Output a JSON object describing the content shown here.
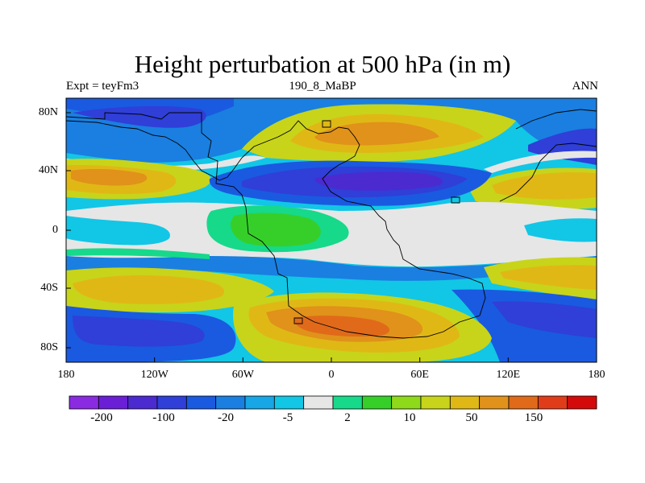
{
  "title": "Height perturbation at 500 hPa (in m)",
  "left_string": "Expt = teyFm3",
  "center_string": "190_8_MaBP",
  "right_string": "ANN",
  "lat_ticks": [
    "80N",
    "40N",
    "0",
    "40S",
    "80S"
  ],
  "lon_ticks": [
    "180",
    "120W",
    "60W",
    "0",
    "60E",
    "120E",
    "180"
  ],
  "colorbar": {
    "colors": [
      "#8a2be2",
      "#6a1fd6",
      "#4b2ad0",
      "#2f3fd8",
      "#1a5ae0",
      "#1a7fe0",
      "#17a6e6",
      "#12c6e6",
      "#e6e6e6",
      "#16d98a",
      "#36cf2a",
      "#8ed91a",
      "#c8d41a",
      "#e0b816",
      "#e0921a",
      "#e06a1a",
      "#e03c1a",
      "#d40a0a"
    ],
    "labels": [
      "-200",
      "-100",
      "-20",
      "-5",
      "2",
      "10",
      "50",
      "150"
    ]
  }
}
